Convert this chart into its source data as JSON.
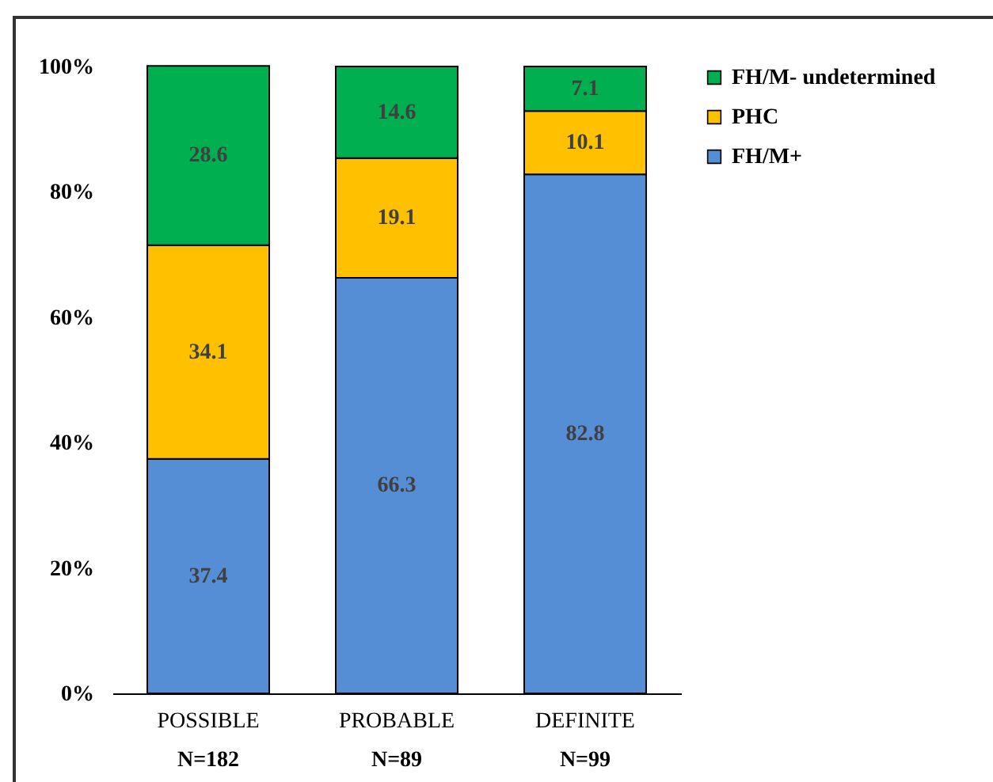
{
  "chart_data": {
    "type": "bar",
    "stacked": true,
    "data_labels": true,
    "legend": "top right",
    "categories": [
      "POSSIBLE",
      "PROBABLE",
      "DEFINITE"
    ],
    "series": [
      {
        "name": "FH/M+",
        "color": "#558ed5",
        "values": [
          37.4,
          66.3,
          82.8
        ]
      },
      {
        "name": "PHC",
        "color": "#ffc000",
        "values": [
          34.1,
          19.1,
          10.1
        ]
      },
      {
        "name": "FH/M- undetermined",
        "color": "#00b050",
        "values": [
          28.6,
          14.6,
          7.1
        ]
      }
    ],
    "ylim": [
      0,
      100
    ],
    "yticks": [
      {
        "value": 0,
        "label": "0%"
      },
      {
        "value": 20,
        "label": "20%"
      },
      {
        "value": 40,
        "label": "40%"
      },
      {
        "value": 60,
        "label": "60%"
      },
      {
        "value": 80,
        "label": "80%"
      },
      {
        "value": 100,
        "label": "100%"
      }
    ],
    "annotations": [
      "N=182",
      "N=89",
      "N=99"
    ]
  }
}
